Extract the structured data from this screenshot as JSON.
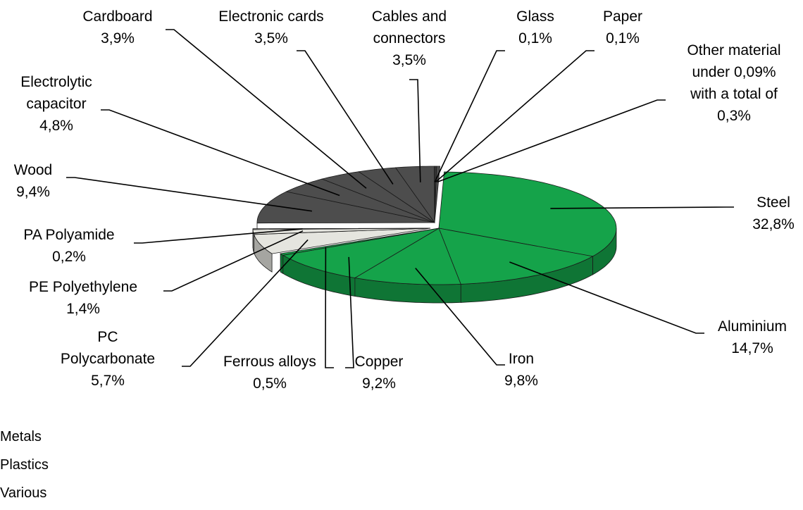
{
  "chart_data": {
    "type": "pie",
    "style": "3d-exploded",
    "slices": [
      {
        "label": [
          "Steel"
        ],
        "value_text": "32,8%",
        "value": 32.8,
        "group": "Metals",
        "color": "#15a34a"
      },
      {
        "label": [
          "Aluminium"
        ],
        "value_text": "14,7%",
        "value": 14.7,
        "group": "Metals",
        "color": "#15a34a"
      },
      {
        "label": [
          "Iron"
        ],
        "value_text": "9,8%",
        "value": 9.8,
        "group": "Metals",
        "color": "#15a34a"
      },
      {
        "label": [
          "Copper"
        ],
        "value_text": "9,2%",
        "value": 9.2,
        "group": "Metals",
        "color": "#15a34a"
      },
      {
        "label": [
          "Ferrous alloys"
        ],
        "value_text": "0,5%",
        "value": 0.5,
        "group": "Metals",
        "color": "#15a34a"
      },
      {
        "label": [
          "PC",
          "Polycarbonate"
        ],
        "value_text": "5,7%",
        "value": 5.7,
        "group": "Plastics",
        "color": "#e5e5df"
      },
      {
        "label": [
          "PE Polyethylene"
        ],
        "value_text": "1,4%",
        "value": 1.4,
        "group": "Plastics",
        "color": "#e5e5df"
      },
      {
        "label": [
          "PA Polyamide"
        ],
        "value_text": "0,2%",
        "value": 0.2,
        "group": "Plastics",
        "color": "#e5e5df"
      },
      {
        "label": [
          "Wood"
        ],
        "value_text": "9,4%",
        "value": 9.4,
        "group": "Various",
        "color": "#4d4d4d"
      },
      {
        "label": [
          "Electrolytic",
          "capacitor"
        ],
        "value_text": "4,8%",
        "value": 4.8,
        "group": "Various",
        "color": "#4d4d4d"
      },
      {
        "label": [
          "Cardboard"
        ],
        "value_text": "3,9%",
        "value": 3.9,
        "group": "Various",
        "color": "#4d4d4d"
      },
      {
        "label": [
          "Electronic cards"
        ],
        "value_text": "3,5%",
        "value": 3.5,
        "group": "Various",
        "color": "#4d4d4d"
      },
      {
        "label": [
          "Cables and",
          "connectors"
        ],
        "value_text": "3,5%",
        "value": 3.5,
        "group": "Various",
        "color": "#4d4d4d"
      },
      {
        "label": [
          "Glass"
        ],
        "value_text": "0,1%",
        "value": 0.1,
        "group": "Various",
        "color": "#4d4d4d"
      },
      {
        "label": [
          "Paper"
        ],
        "value_text": "0,1%",
        "value": 0.1,
        "group": "Various",
        "color": "#4d4d4d"
      },
      {
        "label": [
          "Other material",
          "under 0,09%",
          "with a total of"
        ],
        "value_text": "0,3%",
        "value": 0.3,
        "group": "Various",
        "color": "#4d4d4d"
      }
    ],
    "legend": {
      "placement": "bottom-left",
      "entries": [
        {
          "name": "Metals",
          "color": "#15a34a"
        },
        {
          "name": "Plastics",
          "color": "#e5e5df"
        },
        {
          "name": "Various",
          "color": "#4d4d4d"
        }
      ]
    }
  }
}
